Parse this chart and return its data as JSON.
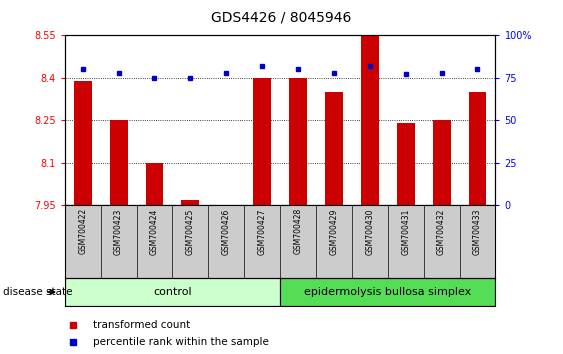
{
  "title": "GDS4426 / 8045946",
  "samples": [
    "GSM700422",
    "GSM700423",
    "GSM700424",
    "GSM700425",
    "GSM700426",
    "GSM700427",
    "GSM700428",
    "GSM700429",
    "GSM700430",
    "GSM700431",
    "GSM700432",
    "GSM700433"
  ],
  "transformed_counts": [
    8.39,
    8.25,
    8.1,
    7.97,
    7.95,
    8.4,
    8.4,
    8.35,
    8.55,
    8.24,
    8.25,
    8.35
  ],
  "percentile_ranks": [
    80,
    78,
    75,
    75,
    78,
    82,
    80,
    78,
    82,
    77,
    78,
    80
  ],
  "ylim_left": [
    7.95,
    8.55
  ],
  "ylim_right": [
    0,
    100
  ],
  "yticks_left": [
    7.95,
    8.1,
    8.25,
    8.4,
    8.55
  ],
  "yticks_right": [
    0,
    25,
    50,
    75,
    100
  ],
  "ytick_labels_left": [
    "7.95",
    "8.1",
    "8.25",
    "8.4",
    "8.55"
  ],
  "ytick_labels_right": [
    "0",
    "25",
    "50",
    "75",
    "100%"
  ],
  "bar_color": "#cc0000",
  "dot_color": "#0000cc",
  "control_label": "control",
  "ebs_label": "epidermolysis bullosa simplex",
  "disease_state_label": "disease state",
  "legend_bar_label": "transformed count",
  "legend_dot_label": "percentile rank within the sample",
  "control_color": "#ccffcc",
  "ebs_color": "#55dd55",
  "sample_box_color": "#cccccc",
  "bg_color": "#ffffff",
  "n_control": 6,
  "n_ebs": 6
}
